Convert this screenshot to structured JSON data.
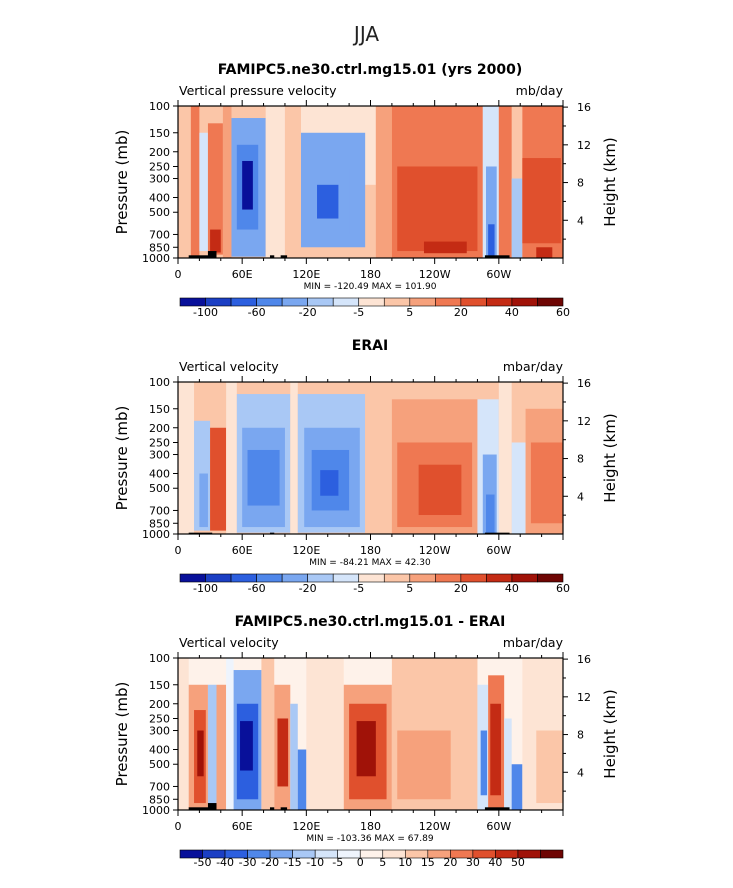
{
  "page_title": "JJA",
  "palettes": {
    "main": [
      "#08109a",
      "#1b3fc4",
      "#2c5fdf",
      "#4f87ea",
      "#7aa7f0",
      "#a9c8f5",
      "#d5e5fa",
      "#fde4d4",
      "#fbc6a8",
      "#f6a17c",
      "#ef7852",
      "#e0502d",
      "#c42b14",
      "#a01208",
      "#6e0503"
    ],
    "diff": [
      "#08109a",
      "#1b3fc4",
      "#2c5fdf",
      "#4f87ea",
      "#7aa7f0",
      "#a9c8f5",
      "#d5e5fa",
      "#eef4fd",
      "#fef2ea",
      "#fde4d4",
      "#fbc6a8",
      "#f6a17c",
      "#ef7852",
      "#e0502d",
      "#c42b14",
      "#a01208",
      "#6e0503"
    ]
  },
  "chart_data": [
    {
      "type": "heatmap",
      "title": "FAMIPC5.ne30.ctrl.mg15.01 (yrs 2000)",
      "left_label": "Vertical pressure velocity",
      "right_label": "mb/day",
      "ylabel": "Pressure (mb)",
      "ylabel_right": "Height (km)",
      "pressure_ticks": [
        100,
        150,
        200,
        250,
        300,
        400,
        500,
        700,
        850,
        1000
      ],
      "height_ticks": [
        4,
        8,
        12,
        16
      ],
      "xticks": [
        {
          "lon": 0,
          "label": "0"
        },
        {
          "lon": 60,
          "label": "60E"
        },
        {
          "lon": 120,
          "label": "120E"
        },
        {
          "lon": 180,
          "label": "180"
        },
        {
          "lon": 240,
          "label": "120W"
        },
        {
          "lon": 300,
          "label": "60W"
        }
      ],
      "xlim": [
        0,
        360
      ],
      "ylim": [
        1000,
        100
      ],
      "stats": "MIN = -120.49   MAX = 101.90",
      "palette": "main",
      "colorbar_labels": [
        "-100",
        "-60",
        "-20",
        "-5",
        "5",
        "20",
        "40",
        "60"
      ],
      "colorbar_label_slots": [
        1,
        3,
        5,
        7,
        9,
        11,
        13,
        15
      ],
      "levels": [
        -100,
        -80,
        -60,
        -40,
        -20,
        -10,
        -5,
        0,
        5,
        10,
        20,
        40,
        60,
        80
      ],
      "cells": [
        {
          "lon0": 0,
          "lon1": 12,
          "p0": 100,
          "p1": 1000,
          "v": 3
        },
        {
          "lon0": 12,
          "lon1": 20,
          "p0": 100,
          "p1": 1000,
          "v": 12
        },
        {
          "lon0": 20,
          "lon1": 28,
          "p0": 150,
          "p1": 900,
          "v": -8
        },
        {
          "lon0": 28,
          "lon1": 42,
          "p0": 130,
          "p1": 950,
          "v": 18
        },
        {
          "lon0": 30,
          "lon1": 40,
          "p0": 650,
          "p1": 920,
          "v": 40
        },
        {
          "lon0": 42,
          "lon1": 50,
          "p0": 100,
          "p1": 1000,
          "v": 8
        },
        {
          "lon0": 50,
          "lon1": 82,
          "p0": 120,
          "p1": 980,
          "v": -22
        },
        {
          "lon0": 55,
          "lon1": 75,
          "p0": 180,
          "p1": 650,
          "v": -60
        },
        {
          "lon0": 60,
          "lon1": 70,
          "p0": 230,
          "p1": 480,
          "v": -110
        },
        {
          "lon0": 82,
          "lon1": 100,
          "p0": 100,
          "p1": 1000,
          "v": -4
        },
        {
          "lon0": 100,
          "lon1": 115,
          "p0": 100,
          "p1": 1000,
          "v": 4
        },
        {
          "lon0": 115,
          "lon1": 185,
          "p0": 100,
          "p1": 330,
          "v": -4
        },
        {
          "lon0": 115,
          "lon1": 175,
          "p0": 150,
          "p1": 850,
          "v": -22
        },
        {
          "lon0": 125,
          "lon1": 160,
          "p0": 260,
          "p1": 700,
          "v": -40
        },
        {
          "lon0": 130,
          "lon1": 150,
          "p0": 330,
          "p1": 550,
          "v": -70
        },
        {
          "lon0": 185,
          "lon1": 200,
          "p0": 100,
          "p1": 1000,
          "v": 6
        },
        {
          "lon0": 200,
          "lon1": 285,
          "p0": 100,
          "p1": 1000,
          "v": 12
        },
        {
          "lon0": 205,
          "lon1": 280,
          "p0": 250,
          "p1": 900,
          "v": 25
        },
        {
          "lon0": 230,
          "lon1": 270,
          "p0": 780,
          "p1": 930,
          "v": 45
        },
        {
          "lon0": 285,
          "lon1": 300,
          "p0": 100,
          "p1": 1000,
          "v": -8
        },
        {
          "lon0": 288,
          "lon1": 298,
          "p0": 250,
          "p1": 1000,
          "v": -30
        },
        {
          "lon0": 290,
          "lon1": 296,
          "p0": 600,
          "p1": 1000,
          "v": -80
        },
        {
          "lon0": 300,
          "lon1": 312,
          "p0": 100,
          "p1": 1000,
          "v": 12
        },
        {
          "lon0": 312,
          "lon1": 322,
          "p0": 300,
          "p1": 1000,
          "v": -15
        },
        {
          "lon0": 322,
          "lon1": 360,
          "p0": 100,
          "p1": 1000,
          "v": 14
        },
        {
          "lon0": 322,
          "lon1": 358,
          "p0": 220,
          "p1": 800,
          "v": 24
        },
        {
          "lon0": 335,
          "lon1": 350,
          "p0": 850,
          "p1": 1000,
          "v": 45
        }
      ],
      "terrain": [
        {
          "lon0": 10,
          "lon1": 32,
          "p": 960
        },
        {
          "lon0": 28,
          "lon1": 36,
          "p": 900
        },
        {
          "lon0": 86,
          "lon1": 90,
          "p": 960
        },
        {
          "lon0": 96,
          "lon1": 102,
          "p": 960
        },
        {
          "lon0": 287,
          "lon1": 310,
          "p": 960
        }
      ]
    },
    {
      "type": "heatmap",
      "title": "ERAI",
      "left_label": "Vertical velocity",
      "right_label": "mbar/day",
      "ylabel": "Pressure (mb)",
      "ylabel_right": "Height (km)",
      "pressure_ticks": [
        100,
        150,
        200,
        250,
        300,
        400,
        500,
        700,
        850,
        1000
      ],
      "height_ticks": [
        4,
        8,
        12,
        16
      ],
      "xticks": [
        {
          "lon": 0,
          "label": "0"
        },
        {
          "lon": 60,
          "label": "60E"
        },
        {
          "lon": 120,
          "label": "120E"
        },
        {
          "lon": 180,
          "label": "180"
        },
        {
          "lon": 240,
          "label": "120W"
        },
        {
          "lon": 300,
          "label": "60W"
        }
      ],
      "xlim": [
        0,
        360
      ],
      "ylim": [
        1000,
        100
      ],
      "stats": "MIN = -84.21   MAX =  42.30",
      "palette": "main",
      "colorbar_labels": [
        "-100",
        "-60",
        "-20",
        "-5",
        "5",
        "20",
        "40",
        "60"
      ],
      "colorbar_label_slots": [
        1,
        3,
        5,
        7,
        9,
        11,
        13,
        15
      ],
      "levels": [
        -100,
        -80,
        -60,
        -40,
        -20,
        -10,
        -5,
        0,
        5,
        10,
        20,
        40,
        60,
        80
      ],
      "cells": [
        {
          "lon0": 0,
          "lon1": 15,
          "p0": 100,
          "p1": 1000,
          "v": -4
        },
        {
          "lon0": 15,
          "lon1": 30,
          "p0": 180,
          "p1": 950,
          "v": -12
        },
        {
          "lon0": 20,
          "lon1": 28,
          "p0": 400,
          "p1": 900,
          "v": -30
        },
        {
          "lon0": 30,
          "lon1": 45,
          "p0": 200,
          "p1": 950,
          "v": 20
        },
        {
          "lon0": 35,
          "lon1": 42,
          "p0": 700,
          "p1": 920,
          "v": 35
        },
        {
          "lon0": 45,
          "lon1": 55,
          "p0": 100,
          "p1": 1000,
          "v": -3
        },
        {
          "lon0": 55,
          "lon1": 105,
          "p0": 120,
          "p1": 980,
          "v": -12
        },
        {
          "lon0": 60,
          "lon1": 100,
          "p0": 200,
          "p1": 900,
          "v": -25
        },
        {
          "lon0": 65,
          "lon1": 95,
          "p0": 280,
          "p1": 650,
          "v": -45
        },
        {
          "lon0": 105,
          "lon1": 112,
          "p0": 100,
          "p1": 1000,
          "v": -4
        },
        {
          "lon0": 112,
          "lon1": 175,
          "p0": 120,
          "p1": 980,
          "v": -12
        },
        {
          "lon0": 118,
          "lon1": 170,
          "p0": 200,
          "p1": 900,
          "v": -25
        },
        {
          "lon0": 125,
          "lon1": 160,
          "p0": 280,
          "p1": 700,
          "v": -45
        },
        {
          "lon0": 133,
          "lon1": 150,
          "p0": 380,
          "p1": 560,
          "v": -70
        },
        {
          "lon0": 175,
          "lon1": 200,
          "p0": 100,
          "p1": 1000,
          "v": 4
        },
        {
          "lon0": 200,
          "lon1": 280,
          "p0": 130,
          "p1": 1000,
          "v": 8
        },
        {
          "lon0": 205,
          "lon1": 275,
          "p0": 250,
          "p1": 900,
          "v": 18
        },
        {
          "lon0": 225,
          "lon1": 265,
          "p0": 350,
          "p1": 750,
          "v": 25
        },
        {
          "lon0": 280,
          "lon1": 300,
          "p0": 130,
          "p1": 1000,
          "v": -8
        },
        {
          "lon0": 285,
          "lon1": 298,
          "p0": 300,
          "p1": 1000,
          "v": -25
        },
        {
          "lon0": 288,
          "lon1": 296,
          "p0": 550,
          "p1": 1000,
          "v": -50
        },
        {
          "lon0": 300,
          "lon1": 312,
          "p0": 100,
          "p1": 1000,
          "v": -3
        },
        {
          "lon0": 312,
          "lon1": 325,
          "p0": 250,
          "p1": 1000,
          "v": -10
        },
        {
          "lon0": 325,
          "lon1": 360,
          "p0": 150,
          "p1": 1000,
          "v": 8
        },
        {
          "lon0": 330,
          "lon1": 360,
          "p0": 250,
          "p1": 850,
          "v": 18
        }
      ],
      "terrain": [
        {
          "lon0": 10,
          "lon1": 32,
          "p": 980
        },
        {
          "lon0": 86,
          "lon1": 90,
          "p": 980
        },
        {
          "lon0": 287,
          "lon1": 310,
          "p": 980
        }
      ]
    },
    {
      "type": "heatmap",
      "title": "FAMIPC5.ne30.ctrl.mg15.01 - ERAI",
      "left_label": "Vertical velocity",
      "right_label": "mbar/day",
      "ylabel": "Pressure (mb)",
      "ylabel_right": "Height (km)",
      "pressure_ticks": [
        100,
        150,
        200,
        250,
        300,
        400,
        500,
        700,
        850,
        1000
      ],
      "height_ticks": [
        4,
        8,
        12,
        16
      ],
      "xticks": [
        {
          "lon": 0,
          "label": "0"
        },
        {
          "lon": 60,
          "label": "60E"
        },
        {
          "lon": 120,
          "label": "120E"
        },
        {
          "lon": 180,
          "label": "180"
        },
        {
          "lon": 240,
          "label": "120W"
        },
        {
          "lon": 300,
          "label": "60W"
        }
      ],
      "xlim": [
        0,
        360
      ],
      "ylim": [
        1000,
        100
      ],
      "stats": "MIN = -103.36   MAX =  67.89",
      "palette": "diff",
      "colorbar_labels": [
        "-50",
        "-40",
        "-30",
        "-20",
        "-15",
        "-10",
        "-5",
        "0",
        "5",
        "10",
        "15",
        "20",
        "30",
        "40",
        "50"
      ],
      "colorbar_label_slots": [
        1,
        2,
        3,
        4,
        5,
        6,
        7,
        8,
        9,
        10,
        11,
        12,
        13,
        14,
        15
      ],
      "levels": [
        -50,
        -40,
        -30,
        -20,
        -15,
        -10,
        -5,
        -1,
        1,
        5,
        10,
        15,
        20,
        30,
        40,
        50
      ],
      "cells": [
        {
          "lon0": 0,
          "lon1": 10,
          "p0": 100,
          "p1": 1000,
          "v": 2
        },
        {
          "lon0": 10,
          "lon1": 28,
          "p0": 150,
          "p1": 980,
          "v": 12
        },
        {
          "lon0": 15,
          "lon1": 26,
          "p0": 220,
          "p1": 900,
          "v": 25
        },
        {
          "lon0": 18,
          "lon1": 24,
          "p0": 300,
          "p1": 600,
          "v": 45
        },
        {
          "lon0": 28,
          "lon1": 36,
          "p0": 150,
          "p1": 1000,
          "v": -12
        },
        {
          "lon0": 36,
          "lon1": 45,
          "p0": 150,
          "p1": 1000,
          "v": 12
        },
        {
          "lon0": 45,
          "lon1": 52,
          "p0": 100,
          "p1": 1000,
          "v": -4
        },
        {
          "lon0": 52,
          "lon1": 78,
          "p0": 120,
          "p1": 1000,
          "v": -18
        },
        {
          "lon0": 55,
          "lon1": 75,
          "p0": 200,
          "p1": 850,
          "v": -35
        },
        {
          "lon0": 58,
          "lon1": 70,
          "p0": 260,
          "p1": 550,
          "v": -60
        },
        {
          "lon0": 78,
          "lon1": 90,
          "p0": 100,
          "p1": 1000,
          "v": 6
        },
        {
          "lon0": 90,
          "lon1": 105,
          "p0": 150,
          "p1": 1000,
          "v": 14
        },
        {
          "lon0": 93,
          "lon1": 103,
          "p0": 250,
          "p1": 700,
          "v": 35
        },
        {
          "lon0": 105,
          "lon1": 112,
          "p0": 200,
          "p1": 1000,
          "v": -12
        },
        {
          "lon0": 112,
          "lon1": 120,
          "p0": 400,
          "p1": 1000,
          "v": -25
        },
        {
          "lon0": 120,
          "lon1": 155,
          "p0": 100,
          "p1": 1000,
          "v": 3
        },
        {
          "lon0": 155,
          "lon1": 200,
          "p0": 150,
          "p1": 1000,
          "v": 12
        },
        {
          "lon0": 160,
          "lon1": 195,
          "p0": 200,
          "p1": 850,
          "v": 25
        },
        {
          "lon0": 167,
          "lon1": 185,
          "p0": 260,
          "p1": 600,
          "v": 40
        },
        {
          "lon0": 200,
          "lon1": 280,
          "p0": 100,
          "p1": 1000,
          "v": 6
        },
        {
          "lon0": 205,
          "lon1": 255,
          "p0": 300,
          "p1": 850,
          "v": 12
        },
        {
          "lon0": 280,
          "lon1": 290,
          "p0": 150,
          "p1": 1000,
          "v": -8
        },
        {
          "lon0": 283,
          "lon1": 289,
          "p0": 300,
          "p1": 800,
          "v": -30
        },
        {
          "lon0": 290,
          "lon1": 305,
          "p0": 130,
          "p1": 1000,
          "v": 18
        },
        {
          "lon0": 292,
          "lon1": 302,
          "p0": 200,
          "p1": 800,
          "v": 35
        },
        {
          "lon0": 305,
          "lon1": 312,
          "p0": 250,
          "p1": 1000,
          "v": -8
        },
        {
          "lon0": 312,
          "lon1": 322,
          "p0": 500,
          "p1": 1000,
          "v": -30
        },
        {
          "lon0": 322,
          "lon1": 360,
          "p0": 100,
          "p1": 1000,
          "v": 3
        },
        {
          "lon0": 335,
          "lon1": 360,
          "p0": 300,
          "p1": 900,
          "v": 7
        }
      ],
      "terrain": [
        {
          "lon0": 10,
          "lon1": 32,
          "p": 960
        },
        {
          "lon0": 28,
          "lon1": 36,
          "p": 900
        },
        {
          "lon0": 86,
          "lon1": 90,
          "p": 960
        },
        {
          "lon0": 96,
          "lon1": 102,
          "p": 960
        },
        {
          "lon0": 287,
          "lon1": 310,
          "p": 960
        }
      ]
    }
  ]
}
